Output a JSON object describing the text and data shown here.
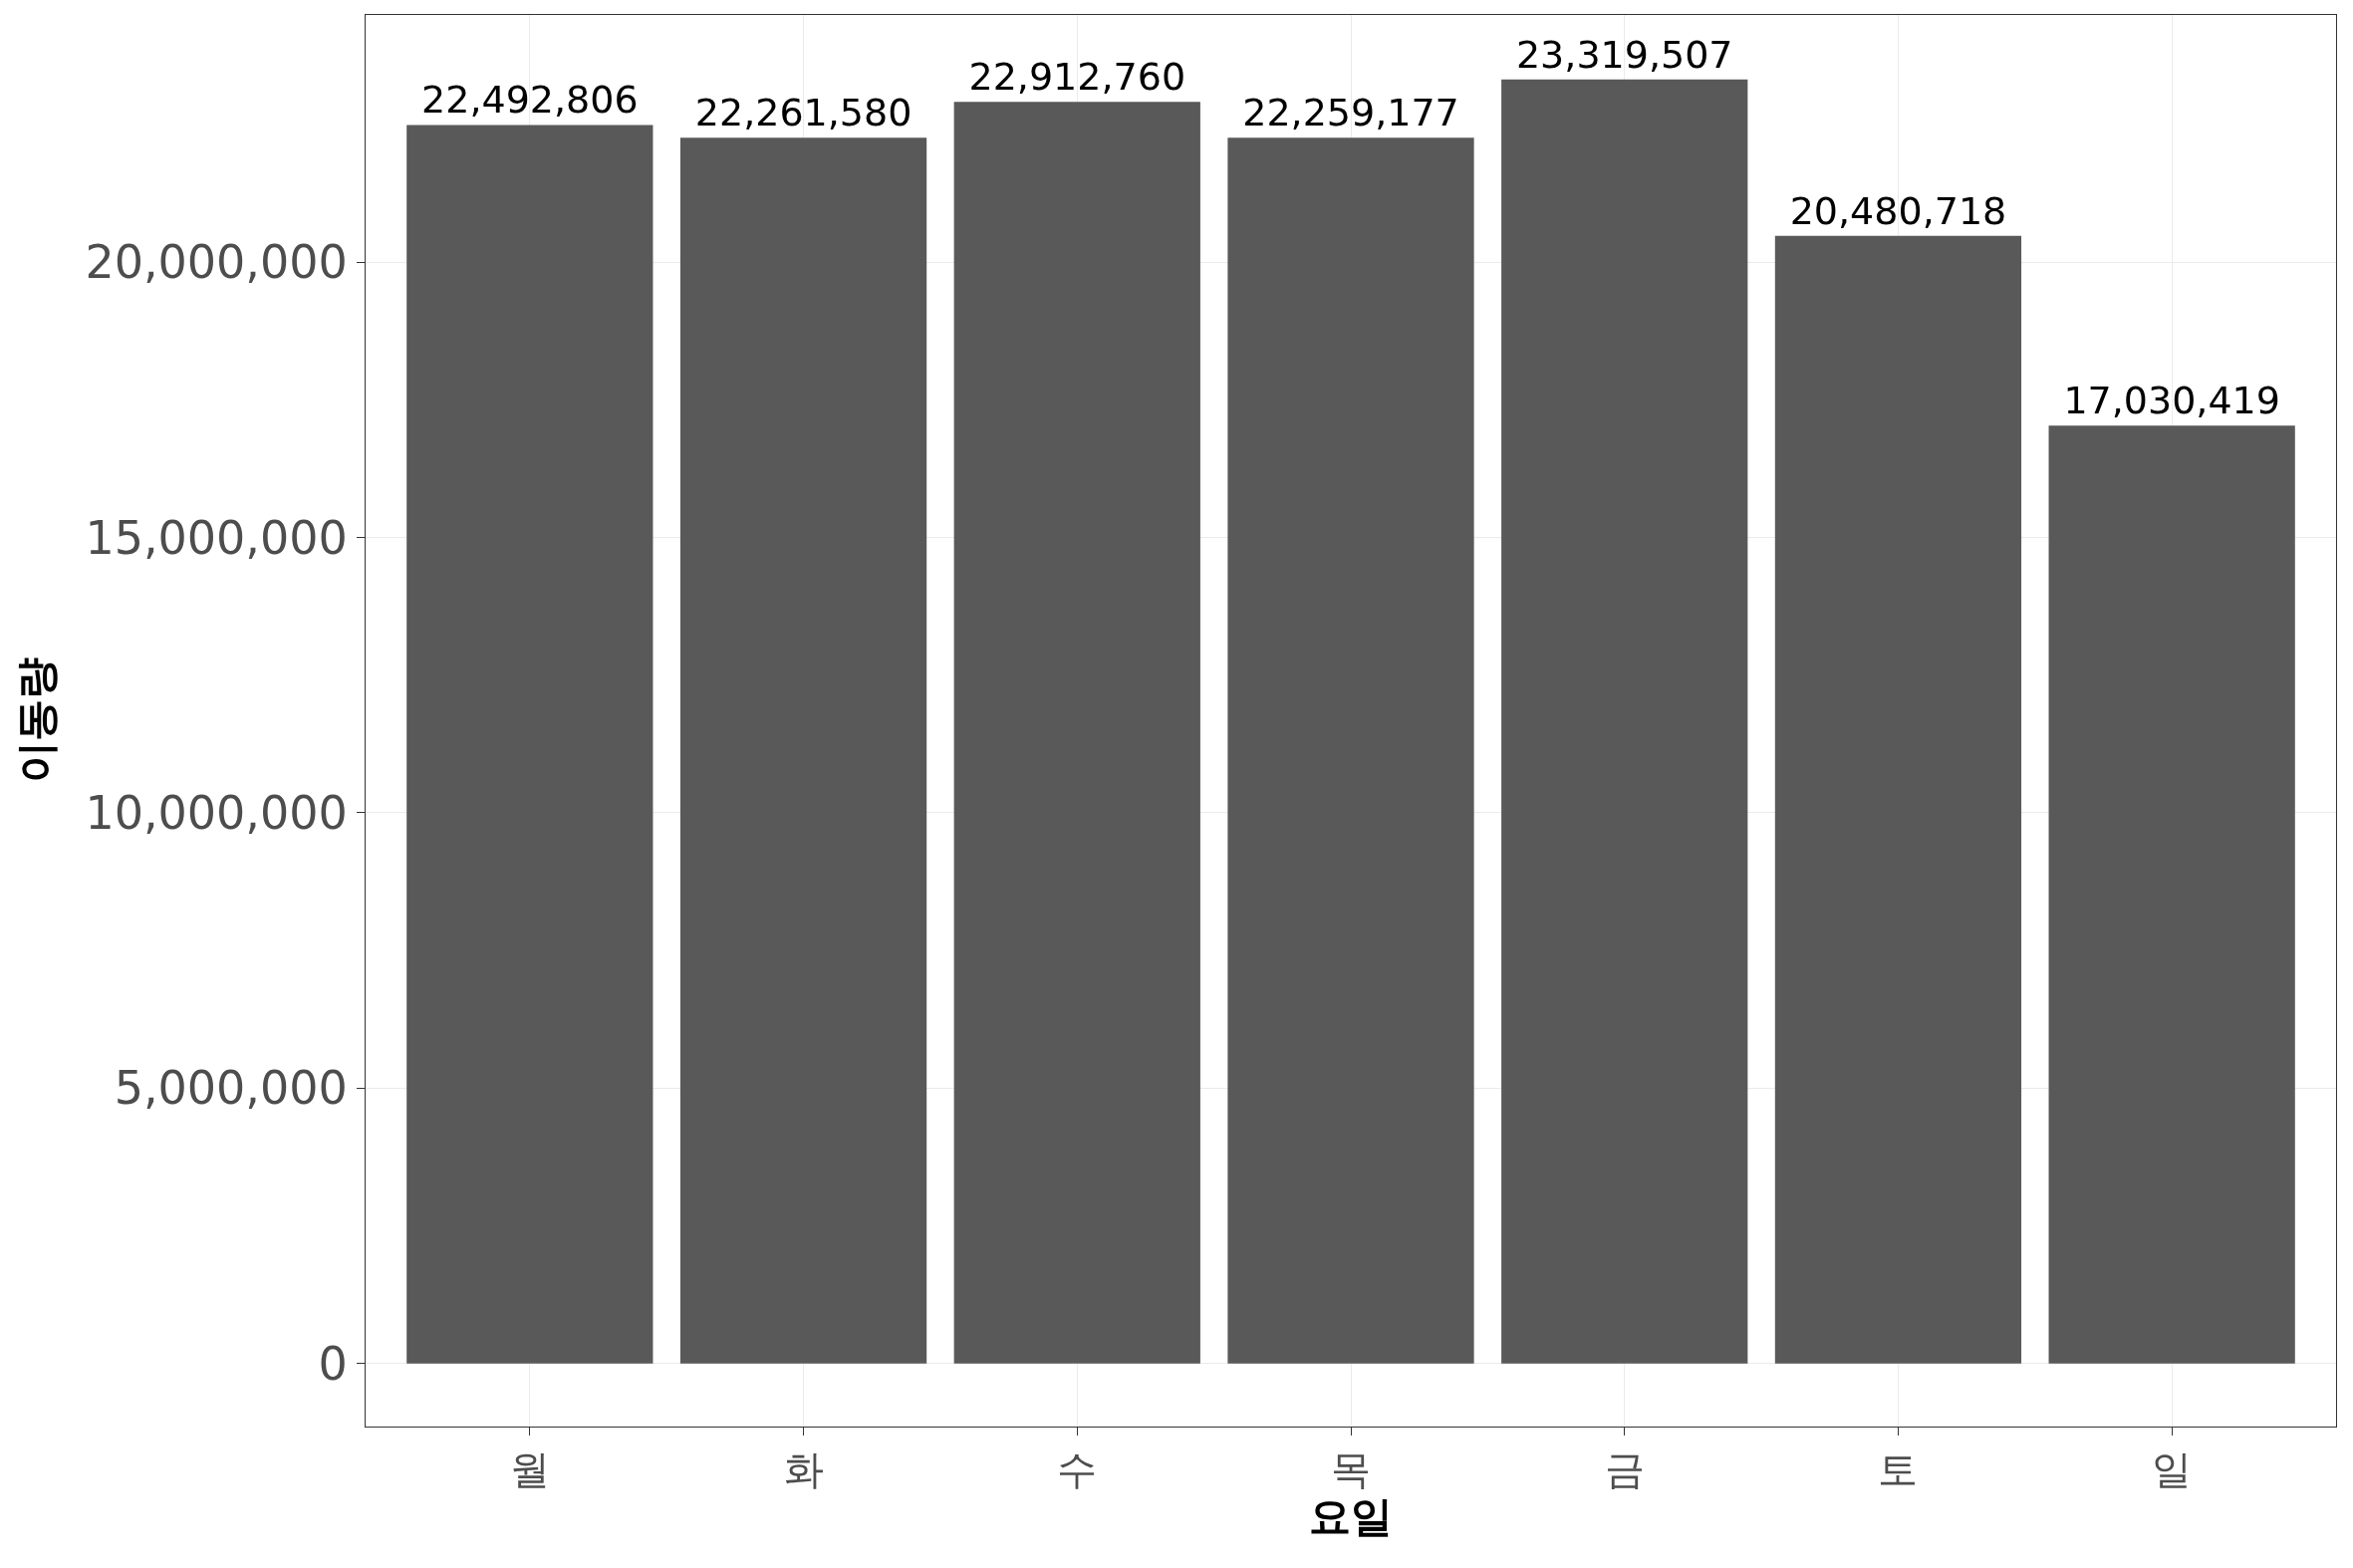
{
  "chart_data": {
    "type": "bar",
    "xlabel": "요일",
    "ylabel": "이동량",
    "categories": [
      "월",
      "화",
      "수",
      "목",
      "금",
      "토",
      "일"
    ],
    "values": [
      22492806,
      22261580,
      22912760,
      22259177,
      23319507,
      20480718,
      17030419
    ],
    "color": "#595959",
    "ylim": [
      -1144000,
      24490000
    ],
    "yticks": [
      {
        "value": 0,
        "label": "0"
      },
      {
        "value": 5000000,
        "label": "5,000,000"
      },
      {
        "value": 10000000,
        "label": "10,000,000"
      },
      {
        "value": 15000000,
        "label": "15,000,000"
      },
      {
        "value": 20000000,
        "label": "20,000,000"
      }
    ],
    "value_labels": [
      "22,492,806",
      "22,261,580",
      "22,912,760",
      "22,259,177",
      "23,319,507",
      "20,480,718",
      "17,030,419"
    ],
    "grid": true
  }
}
